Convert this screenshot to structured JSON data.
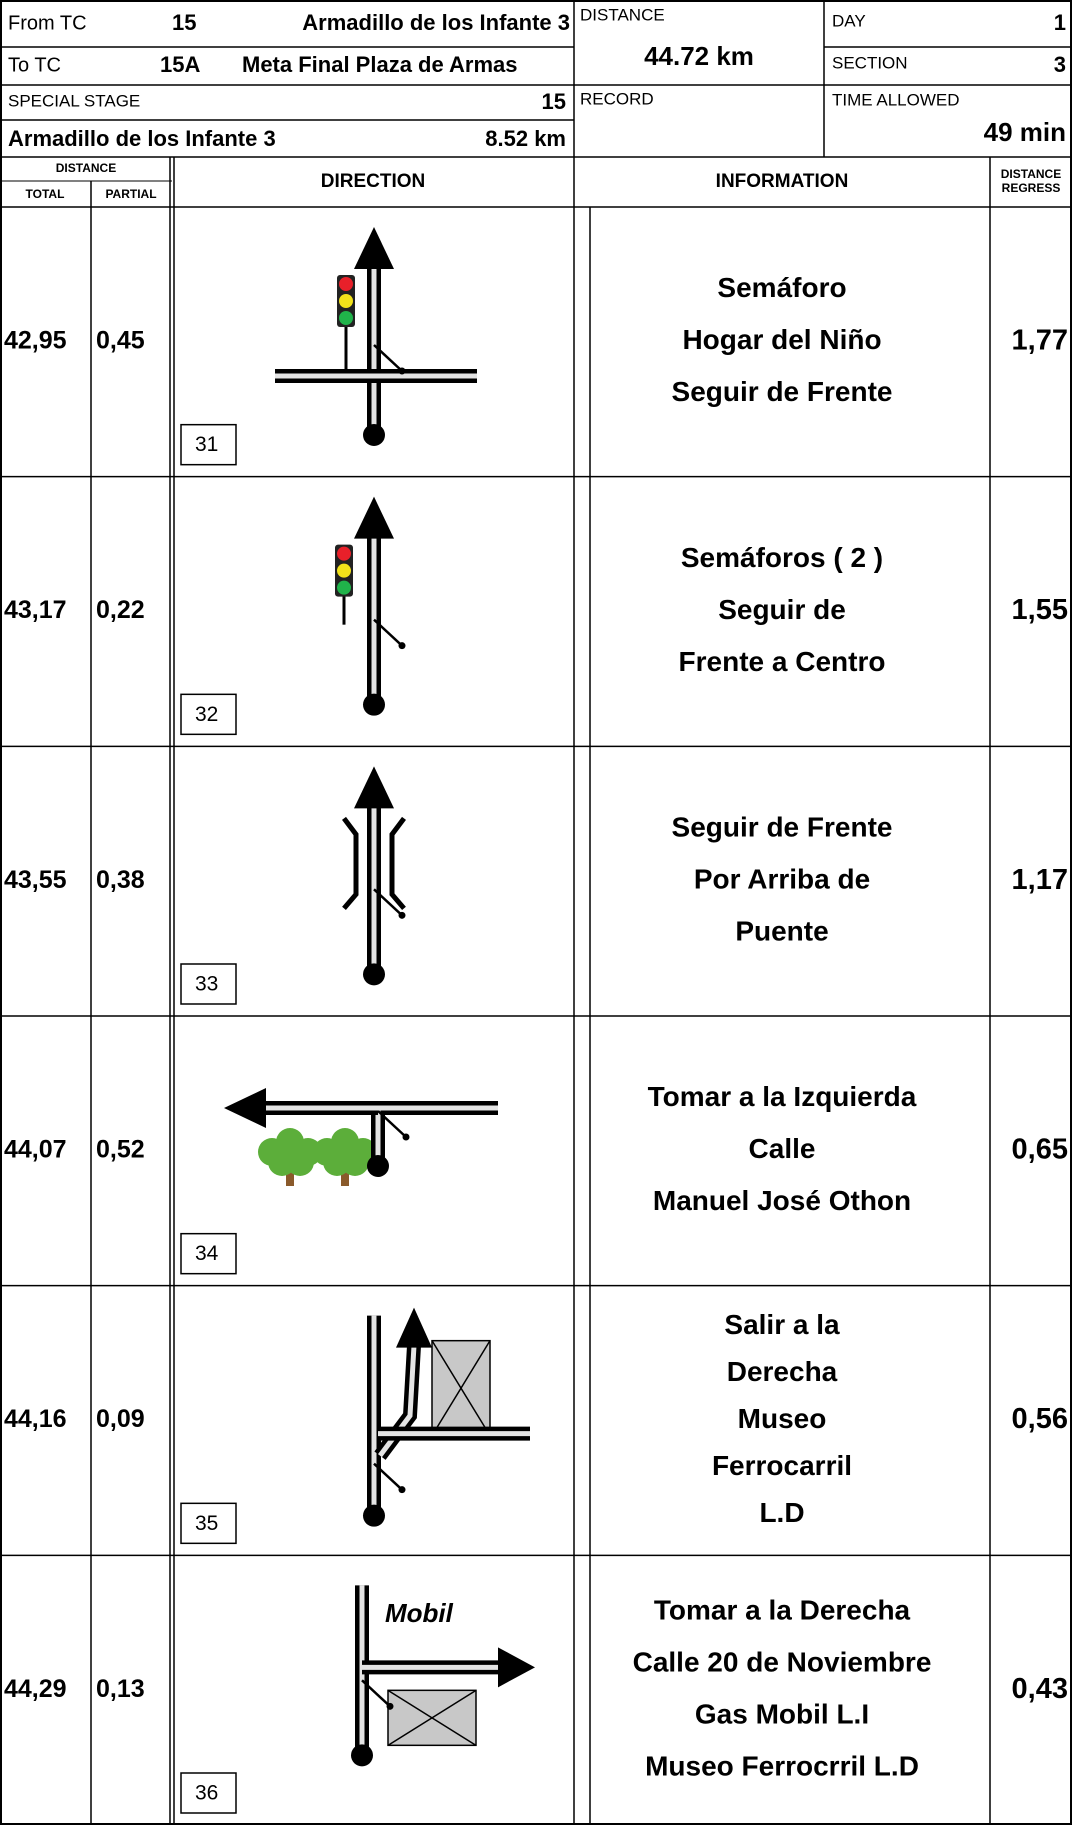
{
  "header": {
    "from_tc_label": "From TC",
    "from_tc": 15,
    "from_tc_name": "Armadillo de los Infante 3",
    "to_tc_label": "To TC",
    "to_tc": "15A",
    "to_tc_name": "Meta Final Plaza de Armas",
    "special_stage_label": "SPECIAL STAGE",
    "special_stage": 15,
    "stage_name": "Armadillo de los Infante 3",
    "stage_length": "8.52 km",
    "distance_label": "DISTANCE",
    "distance": "44.72 km",
    "record_label": "RECORD",
    "day_label": "DAY",
    "day": 1,
    "section_label": "SECTION",
    "section": 3,
    "time_allowed_label": "TIME ALLOWED",
    "time_allowed": "49 min"
  },
  "columns": {
    "distance": "DISTANCE",
    "total": "TOTAL",
    "partial": "PARTIAL",
    "direction": "DIRECTION",
    "information": "INFORMATION",
    "regress": [
      "DISTANCE",
      "REGRESS"
    ]
  },
  "rows": [
    {
      "total": "42,95",
      "partial": "0,45",
      "number": 31,
      "info": [
        "Semáforo",
        "Hogar del Niño",
        "Seguir de Frente"
      ],
      "regress": "1,77"
    },
    {
      "total": "43,17",
      "partial": "0,22",
      "number": 32,
      "info": [
        "Semáforos ( 2 )",
        "Seguir de",
        "Frente a Centro"
      ],
      "regress": "1,55"
    },
    {
      "total": "43,55",
      "partial": "0,38",
      "number": 33,
      "info": [
        "Seguir de Frente",
        "Por Arriba de",
        "Puente"
      ],
      "regress": "1,17"
    },
    {
      "total": "44,07",
      "partial": "0,52",
      "number": 34,
      "info": [
        "Tomar a la Izquierda",
        "Calle",
        "Manuel José Othon"
      ],
      "regress": "0,65"
    },
    {
      "total": "44,16",
      "partial": "0,09",
      "number": 35,
      "info": [
        "Salir a la",
        "Derecha",
        "Museo",
        "Ferrocarril",
        "L.D"
      ],
      "regress": "0,56"
    },
    {
      "total": "44,29",
      "partial": "0,13",
      "number": 36,
      "info": [
        "Tomar a la Derecha",
        "Calle 20 de Noviembre",
        "Gas Mobil L.I",
        "Museo Ferrocrril L.D"
      ],
      "regress": "0,43",
      "sign": "Mobil"
    }
  ]
}
